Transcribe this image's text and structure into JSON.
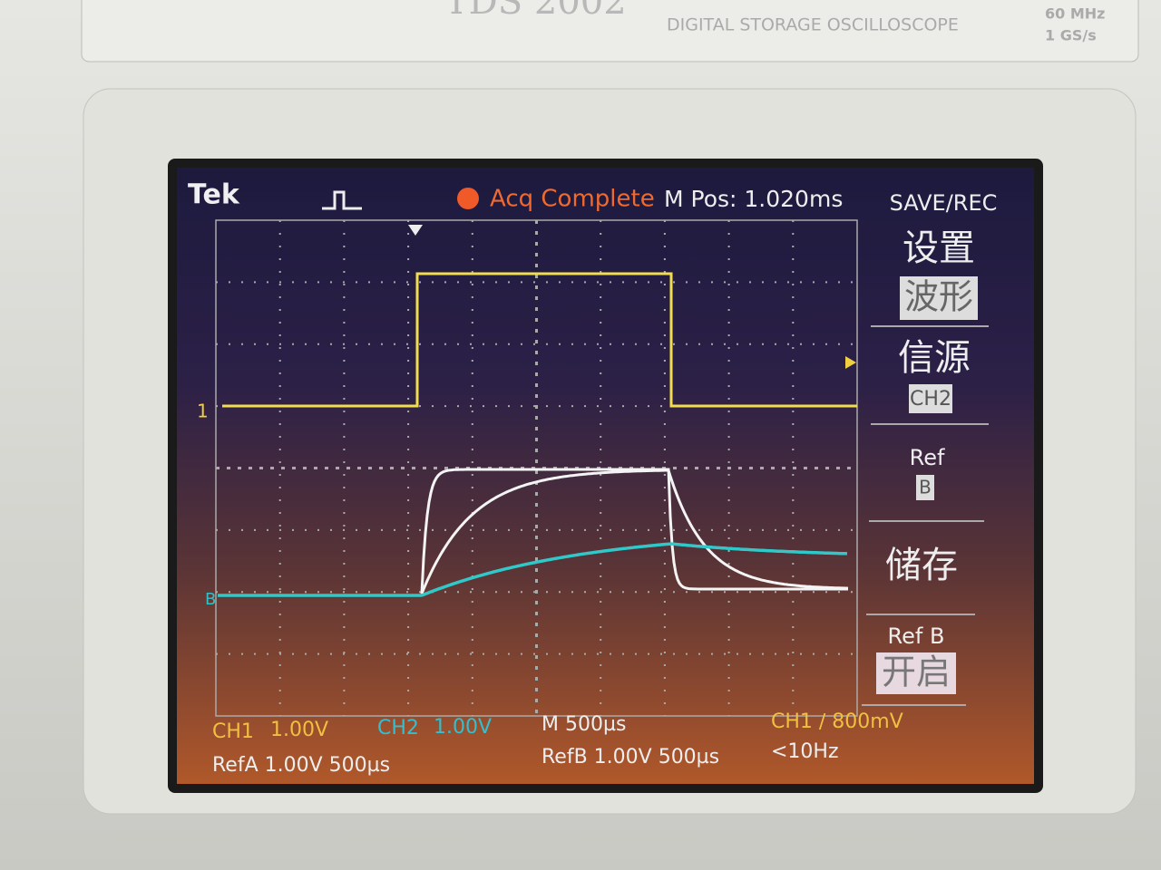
{
  "header": {
    "model": "TDS 2002",
    "subtitle": "DIGITAL STORAGE OSCILLOSCOPE",
    "specs": [
      "60 MHz",
      "1 GS/s"
    ]
  },
  "status": {
    "logo": "Tek",
    "acquisition": "Acq Complete",
    "position": "M Pos: 1.020ms"
  },
  "menu": {
    "title": "SAVE/REC",
    "items": [
      {
        "label": "设置",
        "value": "波形"
      },
      {
        "label": "信源",
        "value": "CH2"
      },
      {
        "label": "Ref",
        "value": "B"
      },
      {
        "label": "储存"
      },
      {
        "label": "Ref B",
        "value": "开启"
      }
    ]
  },
  "markers": {
    "ch1": "1",
    "ref": "B"
  },
  "readout": {
    "ch1": "CH1",
    "ch1_scale": "1.00V",
    "ch2": "CH2",
    "ch2_scale": "1.00V",
    "timebase": "M 500µs",
    "trigger": "CH1 ∕ 800mV",
    "refa": "RefA 1.00V 500µs",
    "refb": "RefB 1.00V 500µs",
    "frequency": "<10Hz"
  }
}
